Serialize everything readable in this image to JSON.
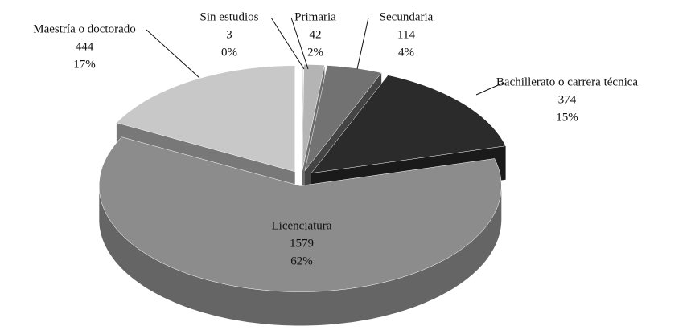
{
  "chart_data": {
    "type": "pie3d",
    "categories": [
      "Sin estudios",
      "Primaria",
      "Secundaria",
      "Bachillerato o carrera técnica",
      "Licenciatura",
      "Maestría o doctorado"
    ],
    "values": [
      3,
      42,
      114,
      374,
      1579,
      444
    ],
    "percent_labels": [
      "0%",
      "2%",
      "4%",
      "15%",
      "62%",
      "17%"
    ],
    "colors": [
      "#d0d0d0",
      "#b4b4b4",
      "#727272",
      "#2b2b2b",
      "#8c8c8c",
      "#c8c8c8"
    ]
  }
}
